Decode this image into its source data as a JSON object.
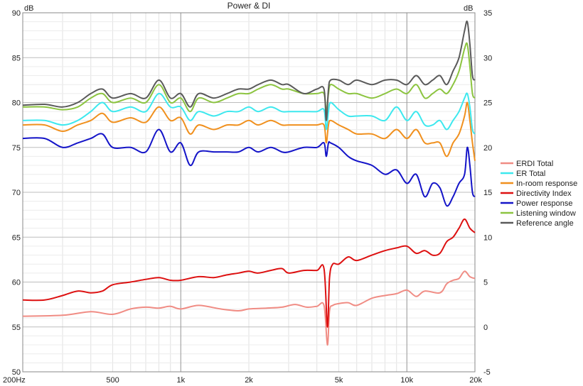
{
  "chart_data": {
    "type": "line",
    "title": "Power & DI",
    "xlabel": "",
    "ylabel_left": "dB",
    "ylabel_right": "dB",
    "x_scale": "log",
    "xlim": [
      200,
      20000
    ],
    "ylim_left": [
      50,
      90
    ],
    "ylim_right": [
      -5,
      35
    ],
    "x_tick_labels": [
      {
        "value": 200,
        "label": "200Hz"
      },
      {
        "value": 500,
        "label": "500"
      },
      {
        "value": 1000,
        "label": "1k"
      },
      {
        "value": 2000,
        "label": "2k"
      },
      {
        "value": 5000,
        "label": "5k"
      },
      {
        "value": 10000,
        "label": "10k"
      },
      {
        "value": 20000,
        "label": "20k"
      }
    ],
    "y_left_ticks": [
      90,
      85,
      80,
      75,
      70,
      65,
      60,
      55,
      50
    ],
    "y_right_ticks": [
      35,
      30,
      25,
      20,
      15,
      10,
      5,
      0,
      -5
    ],
    "grid": true,
    "legend_position": "right",
    "series": [
      {
        "name": "ERDI Total",
        "axis": "right",
        "color": "#f08c84",
        "x": [
          200,
          300,
          400,
          500,
          600,
          700,
          800,
          900,
          1000,
          1200,
          1500,
          1800,
          2000,
          2400,
          2800,
          3200,
          3600,
          4000,
          4300,
          4450,
          4550,
          4700,
          5000,
          5500,
          6000,
          7000,
          8000,
          9000,
          10000,
          11000,
          12000,
          14000,
          15000,
          16000,
          17000,
          18000,
          19000,
          20000
        ],
        "y": [
          1.2,
          1.3,
          1.7,
          1.4,
          2.0,
          2.2,
          2.1,
          2.3,
          2.0,
          2.4,
          2.0,
          1.8,
          2.0,
          2.1,
          2.2,
          2.5,
          2.2,
          2.3,
          2.4,
          -2.0,
          1.8,
          2.4,
          2.6,
          2.7,
          2.4,
          3.2,
          3.5,
          3.7,
          4.1,
          3.4,
          4.0,
          3.8,
          4.8,
          5.2,
          5.4,
          6.2,
          5.6,
          5.4
        ]
      },
      {
        "name": "ER Total",
        "axis": "left",
        "color": "#3de8ee",
        "x": [
          200,
          250,
          300,
          350,
          400,
          450,
          500,
          600,
          700,
          800,
          900,
          1000,
          1100,
          1200,
          1400,
          1600,
          1800,
          2000,
          2200,
          2500,
          2800,
          3000,
          3500,
          4000,
          4300,
          4400,
          4500,
          4600,
          5000,
          5500,
          6000,
          7000,
          8000,
          9000,
          10000,
          11000,
          12000,
          13000,
          14000,
          15000,
          16000,
          17000,
          18000,
          18500,
          19000,
          19500,
          20000
        ],
        "y": [
          78.0,
          78.0,
          77.5,
          78.0,
          79.0,
          80.0,
          79.0,
          79.5,
          79.0,
          81.0,
          79.5,
          79.5,
          78.0,
          79.0,
          78.5,
          79.0,
          79.0,
          79.5,
          79.0,
          79.5,
          79.0,
          79.0,
          79.0,
          79.0,
          79.2,
          77.0,
          79.0,
          80.0,
          79.2,
          78.5,
          78.5,
          78.5,
          78.0,
          79.5,
          78.0,
          79.0,
          77.5,
          77.5,
          78.0,
          77.0,
          78.0,
          79.0,
          80.5,
          81.0,
          79.5,
          77.0,
          76.5
        ]
      },
      {
        "name": "In-room response",
        "axis": "left",
        "color": "#f0901e",
        "x": [
          200,
          250,
          300,
          350,
          400,
          450,
          500,
          600,
          700,
          800,
          900,
          1000,
          1100,
          1200,
          1400,
          1600,
          1800,
          2000,
          2200,
          2500,
          2800,
          3000,
          3500,
          4000,
          4300,
          4400,
          4500,
          4600,
          5000,
          5500,
          6000,
          7000,
          8000,
          9000,
          10000,
          11000,
          12000,
          13000,
          14000,
          15000,
          16000,
          17000,
          18000,
          18500,
          19000,
          19500,
          20000
        ],
        "y": [
          77.5,
          77.5,
          76.8,
          77.5,
          78.0,
          78.8,
          77.8,
          78.3,
          77.8,
          79.5,
          78.0,
          78.3,
          76.5,
          77.5,
          77.0,
          77.5,
          77.5,
          78.0,
          77.5,
          78.0,
          77.5,
          77.5,
          77.5,
          77.5,
          77.5,
          75.5,
          77.5,
          78.0,
          77.5,
          77.0,
          76.5,
          76.5,
          76.0,
          77.0,
          76.0,
          77.0,
          75.5,
          75.5,
          75.5,
          74.0,
          75.5,
          76.5,
          78.5,
          80.0,
          78.0,
          75.5,
          73.5
        ]
      },
      {
        "name": "Directivity Index",
        "axis": "right",
        "color": "#dd1010",
        "x": [
          200,
          250,
          300,
          350,
          400,
          450,
          500,
          600,
          700,
          800,
          900,
          1000,
          1200,
          1400,
          1600,
          1800,
          2000,
          2200,
          2500,
          2800,
          3000,
          3500,
          4000,
          4300,
          4450,
          4550,
          4700,
          5000,
          5500,
          6000,
          7000,
          8000,
          9000,
          10000,
          11000,
          12000,
          13000,
          14000,
          15000,
          16000,
          17000,
          18000,
          19000,
          20000
        ],
        "y": [
          3.0,
          3.0,
          3.5,
          4.0,
          3.8,
          4.0,
          4.7,
          5.0,
          5.3,
          5.5,
          5.2,
          5.2,
          5.6,
          5.5,
          5.8,
          6.0,
          6.2,
          6.0,
          6.3,
          6.5,
          6.0,
          6.3,
          6.3,
          6.5,
          0.0,
          5.5,
          7.0,
          7.0,
          7.8,
          7.4,
          8.0,
          8.5,
          8.8,
          9.0,
          8.2,
          8.5,
          8.0,
          8.2,
          9.5,
          10.0,
          11.0,
          12.0,
          11.0,
          10.5
        ]
      },
      {
        "name": "Power response",
        "axis": "left",
        "color": "#1414c8",
        "x": [
          200,
          250,
          300,
          350,
          400,
          450,
          500,
          600,
          700,
          800,
          900,
          1000,
          1100,
          1200,
          1400,
          1600,
          1800,
          2000,
          2200,
          2500,
          2800,
          3000,
          3500,
          4000,
          4300,
          4400,
          4500,
          4600,
          5000,
          5500,
          6000,
          7000,
          8000,
          9000,
          10000,
          11000,
          12000,
          13000,
          14000,
          15000,
          16000,
          17000,
          18000,
          18500,
          19000,
          19500,
          20000
        ],
        "y": [
          76.0,
          76.0,
          75.0,
          75.5,
          76.0,
          76.5,
          75.0,
          75.0,
          74.5,
          77.0,
          74.5,
          75.5,
          73.0,
          74.5,
          74.5,
          74.5,
          74.5,
          75.0,
          74.5,
          75.0,
          74.5,
          74.5,
          75.0,
          75.0,
          75.5,
          74.0,
          75.5,
          75.5,
          75.0,
          74.0,
          73.5,
          73.0,
          72.0,
          72.5,
          71.0,
          72.0,
          69.5,
          71.0,
          70.5,
          68.5,
          69.5,
          71.0,
          72.0,
          75.0,
          73.0,
          70.0,
          69.5
        ]
      },
      {
        "name": "Listening window",
        "axis": "left",
        "color": "#8cc440",
        "x": [
          200,
          250,
          300,
          350,
          400,
          450,
          500,
          600,
          700,
          800,
          900,
          1000,
          1100,
          1200,
          1400,
          1600,
          1800,
          2000,
          2200,
          2500,
          2800,
          3000,
          3500,
          4000,
          4300,
          4400,
          4500,
          4600,
          5000,
          5500,
          6000,
          7000,
          8000,
          9000,
          10000,
          11000,
          12000,
          13000,
          14000,
          15000,
          16000,
          17000,
          18000,
          18500,
          19000,
          19500,
          20000
        ],
        "y": [
          79.5,
          79.5,
          79.2,
          79.5,
          80.5,
          81.0,
          80.0,
          80.5,
          80.0,
          82.0,
          80.0,
          80.5,
          79.0,
          80.5,
          80.0,
          80.5,
          81.0,
          81.0,
          81.5,
          82.0,
          81.5,
          81.5,
          81.0,
          81.0,
          81.0,
          79.0,
          81.0,
          82.0,
          81.5,
          81.0,
          81.0,
          80.5,
          81.0,
          81.5,
          81.0,
          82.0,
          80.5,
          81.0,
          81.5,
          81.0,
          82.0,
          83.5,
          86.0,
          86.5,
          84.0,
          81.0,
          80.5
        ]
      },
      {
        "name": "Reference angle",
        "axis": "left",
        "color": "#5a5a5a",
        "x": [
          200,
          250,
          300,
          350,
          400,
          450,
          500,
          600,
          700,
          800,
          900,
          1000,
          1100,
          1200,
          1400,
          1600,
          1800,
          2000,
          2200,
          2500,
          2800,
          3000,
          3500,
          4000,
          4300,
          4400,
          4500,
          4600,
          5000,
          5500,
          6000,
          7000,
          8000,
          9000,
          10000,
          11000,
          12000,
          13000,
          14000,
          15000,
          16000,
          17000,
          18000,
          18500,
          19000,
          19500,
          20000
        ],
        "y": [
          79.7,
          79.8,
          79.5,
          80.0,
          81.0,
          81.5,
          80.5,
          81.0,
          80.5,
          82.5,
          80.5,
          81.0,
          79.5,
          81.0,
          80.5,
          81.0,
          81.5,
          81.5,
          82.0,
          82.5,
          82.0,
          82.0,
          81.0,
          81.5,
          81.5,
          78.0,
          81.5,
          82.5,
          82.5,
          82.0,
          82.5,
          82.0,
          82.5,
          82.5,
          82.0,
          83.0,
          82.0,
          82.5,
          83.0,
          82.0,
          83.5,
          85.0,
          88.0,
          89.0,
          86.5,
          83.0,
          82.5
        ]
      }
    ]
  }
}
